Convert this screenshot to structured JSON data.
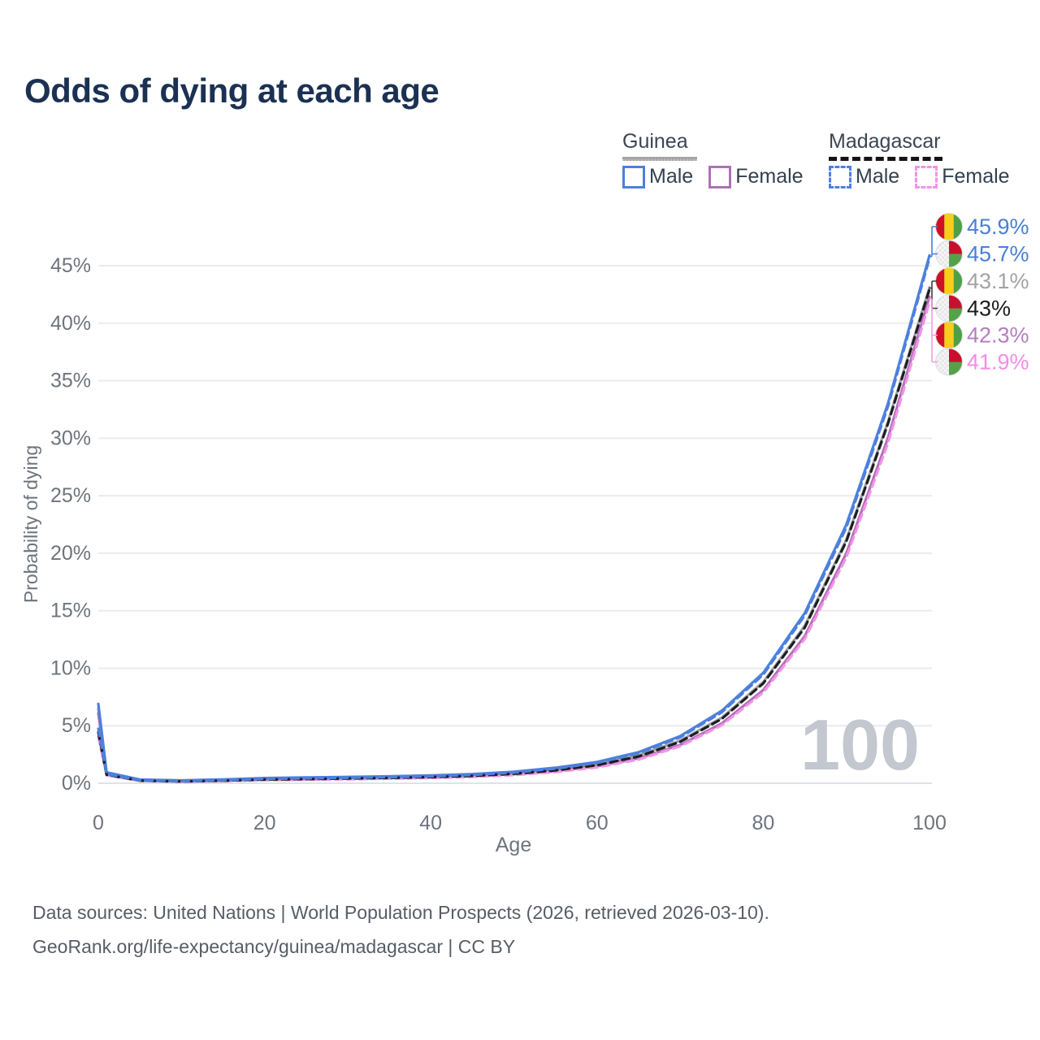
{
  "title": "Odds of dying at each age",
  "legend": {
    "groups": [
      {
        "label": "Guinea",
        "line_style": "solid",
        "items": [
          {
            "label": "Male",
            "color": "#4D80DE"
          },
          {
            "label": "Female",
            "color": "#B06FB8"
          }
        ]
      },
      {
        "label": "Madagascar",
        "line_style": "dashed",
        "items": [
          {
            "label": "Male",
            "color": "#4D80DE"
          },
          {
            "label": "Female",
            "color": "#F393E8"
          }
        ]
      }
    ]
  },
  "chart_data": {
    "type": "line",
    "title": "Odds of dying at each age",
    "xlabel": "Age",
    "ylabel": "Probability of dying",
    "x_ticks": [
      "0",
      "20",
      "40",
      "60",
      "80",
      "100"
    ],
    "y_ticks": [
      "0%",
      "5%",
      "10%",
      "15%",
      "20%",
      "25%",
      "30%",
      "35%",
      "40%",
      "45%"
    ],
    "xlim": [
      0,
      100
    ],
    "ylim_pct": [
      0,
      45
    ],
    "grid": "horizontal",
    "legend_position": "top-right",
    "watermark": "100",
    "x": [
      0,
      1,
      5,
      10,
      15,
      20,
      25,
      30,
      35,
      40,
      45,
      50,
      55,
      60,
      65,
      70,
      75,
      80,
      85,
      90,
      95,
      100
    ],
    "series": [
      {
        "name": "Guinea Male",
        "country": "Guinea",
        "sex": "Male",
        "color": "#4D80DE",
        "dash": false,
        "flag_icon": "guinea-flag-icon",
        "end_label": "45.9%",
        "end_label_color": "#4a7fd6",
        "values": [
          6.9,
          0.95,
          0.32,
          0.25,
          0.33,
          0.45,
          0.5,
          0.55,
          0.6,
          0.68,
          0.8,
          1.0,
          1.35,
          1.85,
          2.7,
          4.1,
          6.3,
          9.6,
          14.8,
          22.5,
          33.0,
          45.9
        ]
      },
      {
        "name": "Madagascar Male",
        "country": "Madagascar",
        "sex": "Male",
        "color": "#4D80DE",
        "dash": true,
        "flag_icon": "madagascar-flag-icon",
        "end_label": "45.7%",
        "end_label_color": "#4a7fd6",
        "values": [
          4.8,
          0.85,
          0.3,
          0.23,
          0.31,
          0.43,
          0.48,
          0.53,
          0.58,
          0.66,
          0.78,
          0.98,
          1.33,
          1.82,
          2.66,
          4.05,
          6.22,
          9.5,
          14.65,
          22.3,
          32.8,
          45.7
        ]
      },
      {
        "name": "Guinea Both sexes",
        "country": "Guinea",
        "sex": "Both",
        "color": "#9CA1A8",
        "dash": false,
        "flag_icon": "guinea-flag-icon",
        "end_label": "43.1%",
        "end_label_color": "#a3a3a3",
        "values": [
          6.5,
          0.9,
          0.3,
          0.23,
          0.29,
          0.39,
          0.44,
          0.48,
          0.53,
          0.6,
          0.71,
          0.9,
          1.2,
          1.65,
          2.42,
          3.7,
          5.7,
          8.8,
          13.7,
          21.2,
          31.4,
          43.1
        ]
      },
      {
        "name": "Madagascar Both sexes",
        "country": "Madagascar",
        "sex": "Both",
        "color": "#1E1E1E",
        "dash": true,
        "flag_icon": "madagascar-flag-icon",
        "end_label": "43%",
        "end_label_color": "#1c1c1c",
        "values": [
          4.5,
          0.8,
          0.28,
          0.21,
          0.28,
          0.38,
          0.42,
          0.47,
          0.52,
          0.59,
          0.7,
          0.88,
          1.18,
          1.63,
          2.39,
          3.66,
          5.65,
          8.74,
          13.6,
          21.1,
          31.3,
          43.0
        ]
      },
      {
        "name": "Guinea Female",
        "country": "Guinea",
        "sex": "Female",
        "color": "#B06FB8",
        "dash": false,
        "flag_icon": "guinea-flag-icon",
        "end_label": "42.3%",
        "end_label_color": "#b57ec0",
        "values": [
          6.1,
          0.85,
          0.28,
          0.21,
          0.25,
          0.33,
          0.37,
          0.41,
          0.46,
          0.52,
          0.62,
          0.79,
          1.06,
          1.47,
          2.17,
          3.33,
          5.2,
          8.1,
          12.8,
          20.0,
          30.0,
          42.3
        ]
      },
      {
        "name": "Madagascar Female",
        "country": "Madagascar",
        "sex": "Female",
        "color": "#F393E8",
        "dash": true,
        "flag_icon": "madagascar-flag-icon",
        "end_label": "41.9%",
        "end_label_color": "#f98ae6",
        "values": [
          4.1,
          0.75,
          0.26,
          0.19,
          0.24,
          0.32,
          0.36,
          0.4,
          0.45,
          0.51,
          0.6,
          0.77,
          1.03,
          1.44,
          2.12,
          3.27,
          5.1,
          7.95,
          12.6,
          19.7,
          29.6,
          41.9
        ]
      }
    ],
    "bracket_colors": [
      "#4a7fd6",
      "#3f3f3f",
      "#f79ae0"
    ],
    "colors": {
      "grid": "#e9ebee",
      "axis_text": "#6e747d",
      "watermark": "#c3c7cf",
      "guinea_flag": {
        "red": "#CE1126",
        "yellow": "#F7CE1B",
        "green": "#4CA146"
      },
      "madagascar_flag": {
        "white": "#f6f6f8",
        "checker": "#e7e7ea",
        "red": "#C8102E",
        "green": "#55A149"
      }
    }
  },
  "footer": {
    "line1": "Data sources: United Nations | World Population Prospects (2026, retrieved 2026-03-10).",
    "line2": "GeoRank.org/life-expectancy/guinea/madagascar | CC BY"
  }
}
